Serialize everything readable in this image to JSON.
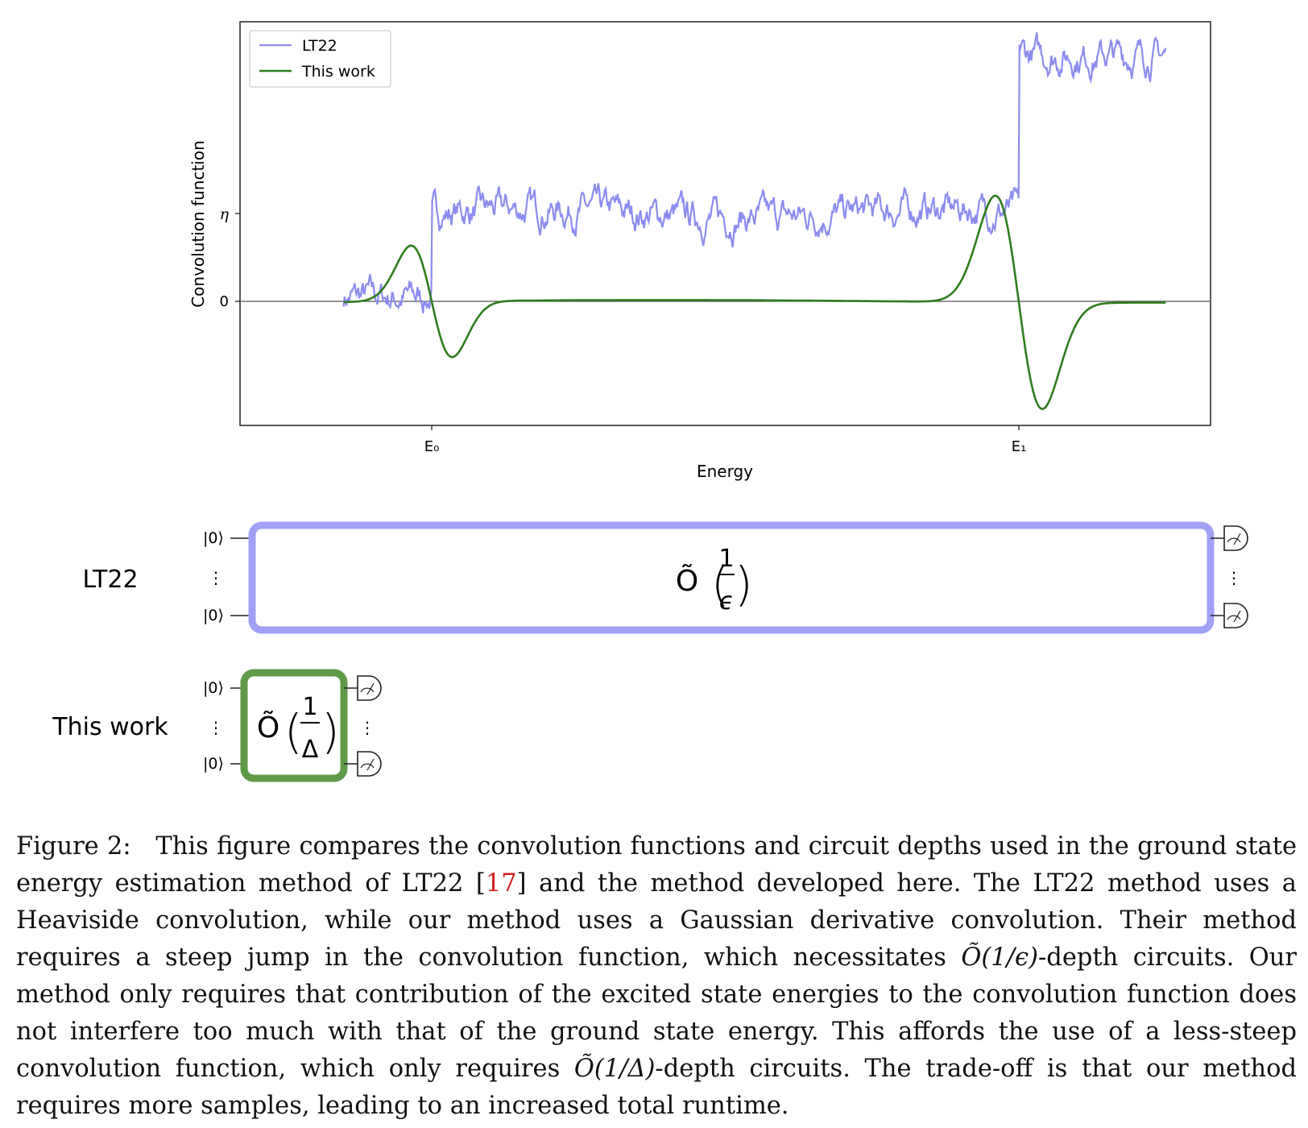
{
  "chart_data": {
    "type": "line",
    "xlabel": "Energy",
    "ylabel": "Convolution function",
    "x_ticks": [
      "E₀",
      "E₁"
    ],
    "y_ticks": [
      "0",
      "η"
    ],
    "grid": false,
    "legend_position": "top-left",
    "series": [
      {
        "name": "LT22",
        "color": "#8c8cf0",
        "description_points": {
          "x": [
            -0.15,
            0.0,
            0.0,
            0.5,
            0.98,
            1.0,
            1.0,
            1.25
          ],
          "y": [
            0.05,
            0.0,
            1.0,
            1.0,
            1.0,
            1.05,
            2.75,
            2.75
          ]
        }
      },
      {
        "name": "This work",
        "color": "#2e7d1e",
        "description_points": {
          "x": [
            -0.15,
            -0.06,
            -0.04,
            0.0,
            0.04,
            0.12,
            0.9,
            0.96,
            0.99,
            1.0,
            1.04,
            1.15,
            1.25
          ],
          "y": [
            0.0,
            0.0,
            0.6,
            0.0,
            -0.65,
            0.0,
            0.0,
            1.15,
            1.15,
            0.0,
            -1.2,
            0.0,
            0.02
          ]
        }
      }
    ]
  },
  "legend": {
    "items": [
      "LT22",
      "This work"
    ]
  },
  "circuits": {
    "rows": [
      {
        "label": "LT22",
        "input_top": "|0⟩",
        "input_bottom": "|0⟩",
        "vdots": "⋮",
        "complexity": "Õ",
        "frac_num": "1",
        "frac_den": "ϵ",
        "color": "#a0a0f5"
      },
      {
        "label": "This work",
        "input_top": "|0⟩",
        "input_bottom": "|0⟩",
        "vdots": "⋮",
        "complexity": "Õ",
        "frac_num": "1",
        "frac_den": "Δ",
        "color": "#5f9a49"
      }
    ]
  },
  "caption": {
    "lead": "Figure 2:",
    "text_1": "This figure compares the convolution functions and circuit depths used in the ground state energy estimation method of LT22 [",
    "cite": "17",
    "text_2": "] and the method developed here. The LT22 method uses a Heaviside convolution, while our method uses a Gaussian derivative convolution. Their method requires a steep jump in the convolution function, which necessitates ",
    "math_1": "Õ(1/ϵ)",
    "text_3": "-depth circuits. Our method only requires that contribution of the excited state energies to the convolution function does not interfere too much with that of the ground state energy. This affords the use of a less-steep convolution function, which only requires ",
    "math_2": "Õ(1/Δ)",
    "text_4": "-depth circuits. The trade-off is that our method requires more samples, leading to an increased total runtime."
  }
}
